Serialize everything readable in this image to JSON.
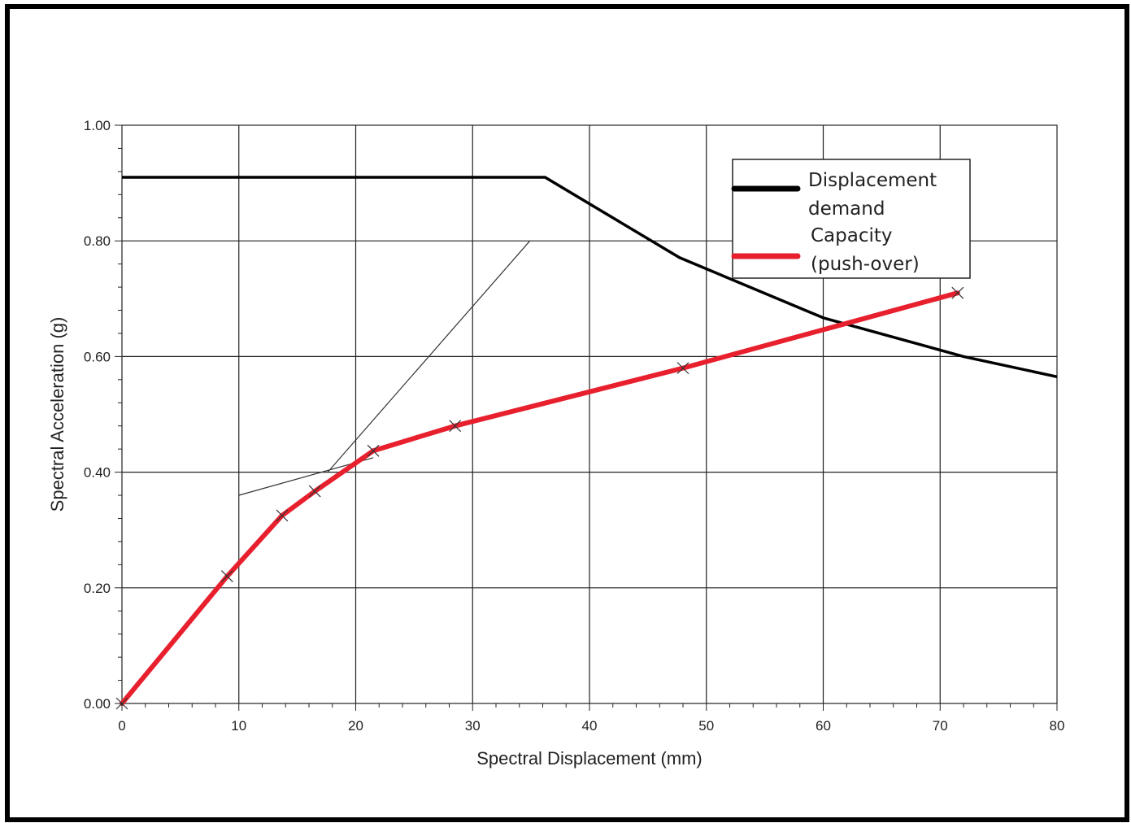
{
  "chart_data": {
    "type": "line",
    "title": "",
    "xlabel": "Spectral Displacement (mm)",
    "ylabel": "Spectral Acceleration (g)",
    "xlim": [
      0,
      80
    ],
    "ylim": [
      0,
      1.0
    ],
    "x_ticks": [
      "0",
      "10",
      "20",
      "30",
      "40",
      "50",
      "60",
      "70",
      "80"
    ],
    "y_ticks": [
      "0.00",
      "0.20",
      "0.40",
      "0.60",
      "0.80",
      "1.00"
    ],
    "grid": true,
    "legend_position": "top-right",
    "series": [
      {
        "name": "Displacement demand",
        "color": "#000000",
        "points": [
          [
            0,
            0.91
          ],
          [
            36.2,
            0.91
          ],
          [
            47.7,
            0.771
          ],
          [
            60,
            0.667
          ],
          [
            72,
            0.6
          ],
          [
            80,
            0.565
          ]
        ]
      },
      {
        "name": "Capacity (push-over)",
        "color": "#e8202e",
        "markers": "x",
        "points": [
          [
            0,
            0.0
          ],
          [
            9,
            0.22
          ],
          [
            13.7,
            0.325
          ],
          [
            16.5,
            0.367
          ],
          [
            21.5,
            0.437
          ],
          [
            28.5,
            0.48
          ],
          [
            48,
            0.58
          ],
          [
            71.5,
            0.71
          ]
        ]
      },
      {
        "name": "",
        "color": "#333333",
        "points": [
          [
            17.6,
            0.4
          ],
          [
            34.9,
            0.8
          ]
        ]
      },
      {
        "name": "",
        "color": "#333333",
        "points": [
          [
            10,
            0.36
          ],
          [
            21.5,
            0.425
          ]
        ]
      }
    ],
    "legend": [
      {
        "line1": "Displacement",
        "line2": "demand",
        "color": "#000000"
      },
      {
        "line1": "Capacity",
        "line2": "(push-over)",
        "color": "#e8202e"
      }
    ]
  }
}
